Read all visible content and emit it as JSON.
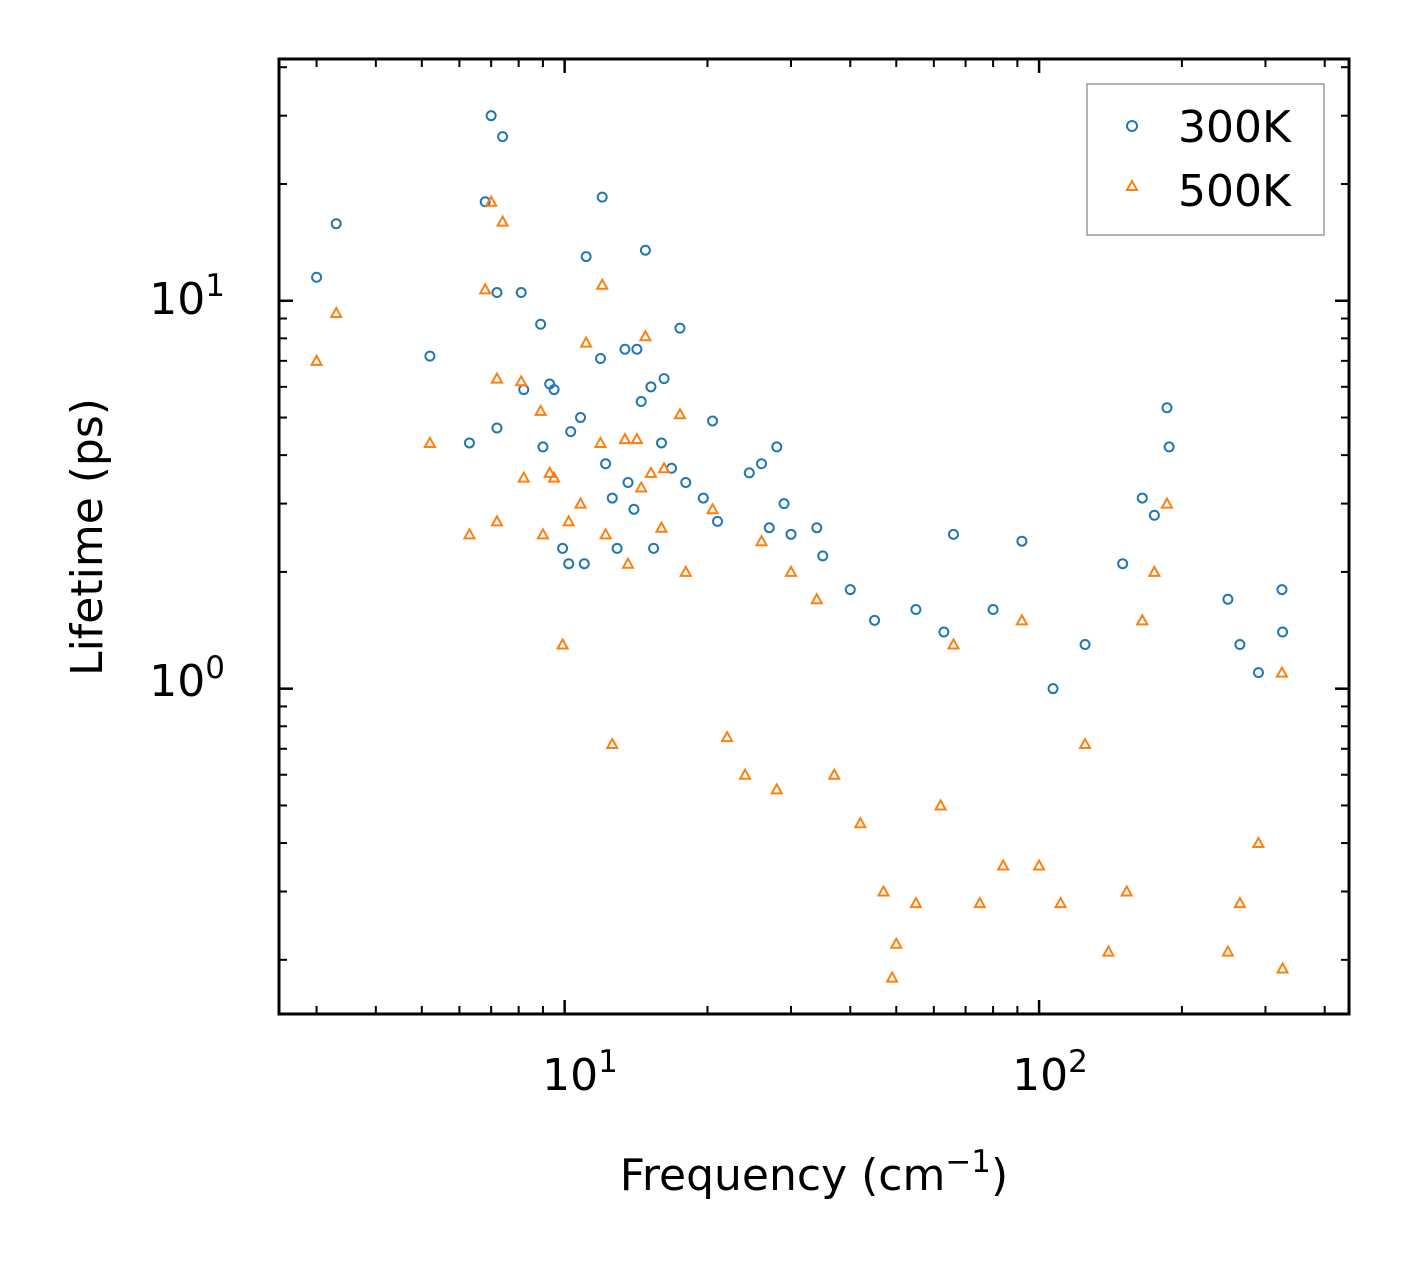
{
  "chart_data": {
    "type": "scatter",
    "title": "",
    "xlabel": "Frequency (cm",
    "xlabel_sup": "−1",
    "xlabel_close": ")",
    "ylabel": "Lifetime (ps)",
    "xscale": "log",
    "yscale": "log",
    "xlim": [
      2.5,
      450
    ],
    "ylim": [
      0.145,
      42
    ],
    "x_ticks": [
      {
        "value": 10,
        "base": "10",
        "exp": "1"
      },
      {
        "value": 100,
        "base": "10",
        "exp": "2"
      }
    ],
    "y_ticks": [
      {
        "value": 1,
        "base": "10",
        "exp": "0"
      },
      {
        "value": 10,
        "base": "10",
        "exp": "1"
      }
    ],
    "legend_position": "top-right",
    "series": [
      {
        "name": "300K",
        "marker": "circle-open",
        "color": "#1f77b4",
        "points": [
          [
            3.0,
            11.5
          ],
          [
            3.3,
            15.8
          ],
          [
            5.2,
            7.2
          ],
          [
            6.3,
            4.3
          ],
          [
            6.8,
            18.0
          ],
          [
            7.0,
            30.0
          ],
          [
            7.2,
            10.5
          ],
          [
            7.2,
            4.7
          ],
          [
            7.4,
            26.5
          ],
          [
            8.1,
            10.5
          ],
          [
            8.2,
            5.9
          ],
          [
            8.9,
            8.7
          ],
          [
            9.0,
            4.2
          ],
          [
            9.3,
            6.1
          ],
          [
            9.5,
            5.9
          ],
          [
            9.9,
            2.3
          ],
          [
            10.2,
            2.1
          ],
          [
            10.3,
            4.6
          ],
          [
            10.8,
            5.0
          ],
          [
            11.0,
            2.1
          ],
          [
            11.1,
            13.0
          ],
          [
            11.9,
            7.1
          ],
          [
            12.0,
            18.5
          ],
          [
            12.2,
            3.8
          ],
          [
            12.6,
            3.1
          ],
          [
            12.9,
            2.3
          ],
          [
            13.4,
            7.5
          ],
          [
            13.6,
            3.4
          ],
          [
            14.0,
            2.9
          ],
          [
            14.2,
            7.5
          ],
          [
            14.5,
            5.5
          ],
          [
            14.8,
            13.5
          ],
          [
            15.2,
            6.0
          ],
          [
            15.4,
            2.3
          ],
          [
            16.0,
            4.3
          ],
          [
            16.2,
            6.3
          ],
          [
            16.8,
            3.7
          ],
          [
            17.5,
            8.5
          ],
          [
            18.0,
            3.4
          ],
          [
            19.6,
            3.1
          ],
          [
            20.5,
            4.9
          ],
          [
            21.0,
            2.7
          ],
          [
            24.5,
            3.6
          ],
          [
            26.0,
            3.8
          ],
          [
            27.0,
            2.6
          ],
          [
            28.0,
            4.2
          ],
          [
            29.0,
            3.0
          ],
          [
            30.0,
            2.5
          ],
          [
            34.0,
            2.6
          ],
          [
            35.0,
            2.2
          ],
          [
            40.0,
            1.8
          ],
          [
            45.0,
            1.5
          ],
          [
            55.0,
            1.6
          ],
          [
            63.0,
            1.4
          ],
          [
            66.0,
            2.5
          ],
          [
            80.0,
            1.6
          ],
          [
            92.0,
            2.4
          ],
          [
            107.0,
            1.0
          ],
          [
            125.0,
            1.3
          ],
          [
            150.0,
            2.1
          ],
          [
            165.0,
            3.1
          ],
          [
            175.0,
            2.8
          ],
          [
            186.0,
            5.3
          ],
          [
            188.0,
            4.2
          ],
          [
            250.0,
            1.7
          ],
          [
            265.0,
            1.3
          ],
          [
            290.0,
            1.1
          ],
          [
            325.0,
            1.8
          ],
          [
            326.0,
            1.4
          ]
        ]
      },
      {
        "name": "500K",
        "marker": "triangle-open",
        "color": "#ff7f0e",
        "points": [
          [
            3.0,
            7.0
          ],
          [
            3.3,
            9.3
          ],
          [
            5.2,
            4.3
          ],
          [
            6.3,
            2.5
          ],
          [
            6.8,
            10.7
          ],
          [
            7.0,
            18.0
          ],
          [
            7.2,
            6.3
          ],
          [
            7.2,
            2.7
          ],
          [
            7.4,
            16.0
          ],
          [
            8.1,
            6.2
          ],
          [
            8.2,
            3.5
          ],
          [
            8.9,
            5.2
          ],
          [
            9.0,
            2.5
          ],
          [
            9.3,
            3.6
          ],
          [
            9.5,
            3.5
          ],
          [
            9.9,
            1.3
          ],
          [
            10.2,
            2.7
          ],
          [
            10.8,
            3.0
          ],
          [
            11.1,
            7.8
          ],
          [
            11.9,
            4.3
          ],
          [
            12.0,
            11.0
          ],
          [
            12.2,
            2.5
          ],
          [
            12.6,
            0.72
          ],
          [
            13.4,
            4.4
          ],
          [
            13.6,
            2.1
          ],
          [
            14.2,
            4.4
          ],
          [
            14.5,
            3.3
          ],
          [
            14.8,
            8.1
          ],
          [
            15.2,
            3.6
          ],
          [
            16.0,
            2.6
          ],
          [
            16.2,
            3.7
          ],
          [
            17.5,
            5.1
          ],
          [
            18.0,
            2.0
          ],
          [
            20.5,
            2.9
          ],
          [
            22.0,
            0.75
          ],
          [
            24.0,
            0.6
          ],
          [
            26.0,
            2.4
          ],
          [
            28.0,
            0.55
          ],
          [
            30.0,
            2.0
          ],
          [
            34.0,
            1.7
          ],
          [
            37.0,
            0.6
          ],
          [
            42.0,
            0.45
          ],
          [
            47.0,
            0.3
          ],
          [
            49.0,
            0.18
          ],
          [
            50.0,
            0.22
          ],
          [
            55.0,
            0.28
          ],
          [
            62.0,
            0.5
          ],
          [
            66.0,
            1.3
          ],
          [
            75.0,
            0.28
          ],
          [
            84.0,
            0.35
          ],
          [
            92.0,
            1.5
          ],
          [
            100.0,
            0.35
          ],
          [
            111.0,
            0.28
          ],
          [
            125.0,
            0.72
          ],
          [
            140.0,
            0.21
          ],
          [
            153.0,
            0.3
          ],
          [
            165.0,
            1.5
          ],
          [
            175.0,
            2.0
          ],
          [
            186.0,
            3.0
          ],
          [
            250.0,
            0.21
          ],
          [
            265.0,
            0.28
          ],
          [
            290.0,
            0.4
          ],
          [
            325.0,
            1.1
          ],
          [
            326.0,
            0.19
          ]
        ]
      }
    ]
  }
}
